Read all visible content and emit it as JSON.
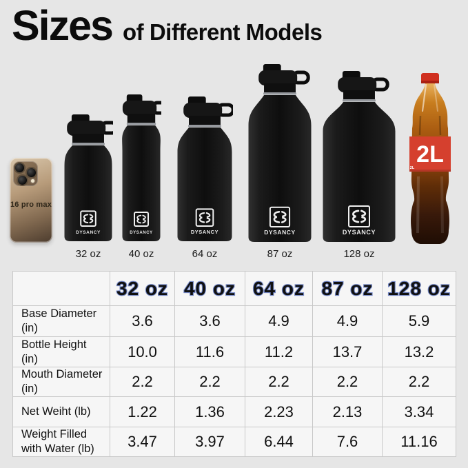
{
  "title": {
    "main": "Sizes",
    "sub": "of Different Models"
  },
  "brand": {
    "name": "DYSANCY"
  },
  "lineup": {
    "phone": {
      "label": "16 pro max"
    },
    "bottles": [
      {
        "label": "32 oz"
      },
      {
        "label": "40 oz"
      },
      {
        "label": "64 oz"
      },
      {
        "label": "87 oz"
      },
      {
        "label": "128 oz"
      }
    ],
    "cola": {
      "label": "2L",
      "small_label": "2L"
    }
  },
  "table": {
    "columns": [
      "32 oz",
      "40 oz",
      "64 oz",
      "87 oz",
      "128 oz"
    ],
    "rows": [
      {
        "label": "Base Diameter (in)",
        "values": [
          "3.6",
          "3.6",
          "4.9",
          "4.9",
          "5.9"
        ]
      },
      {
        "label": "Bottle Height (in)",
        "values": [
          "10.0",
          "11.6",
          "11.2",
          "13.7",
          "13.2"
        ]
      },
      {
        "label": "Mouth Diameter (in)",
        "values": [
          "2.2",
          "2.2",
          "2.2",
          "2.2",
          "2.2"
        ]
      },
      {
        "label": "Net Weiht (lb)",
        "values": [
          "1.22",
          "1.36",
          "2.23",
          "2.13",
          "3.34"
        ]
      },
      {
        "label": "Weight Filled with Water (lb)",
        "values": [
          "3.47",
          "3.97",
          "6.44",
          "7.6",
          "11.16"
        ]
      }
    ]
  },
  "colors": {
    "background": "#e6e6e6",
    "table_background": "#f6f6f6",
    "table_border": "#c8c8c8",
    "header_text_fill": "#dbe2f4",
    "header_text_outline": "#7185c4",
    "bottle_black": "#121212",
    "cola_red": "#d5402e",
    "phone_bronze": "#b79b7a"
  }
}
